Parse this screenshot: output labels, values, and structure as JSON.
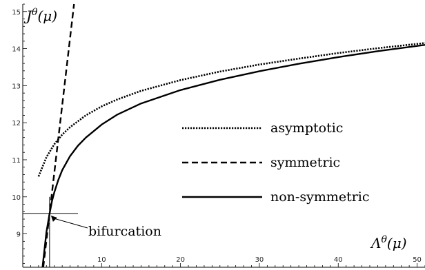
{
  "chart_data": {
    "type": "line",
    "xlabel": "Λ^θ(μ)",
    "ylabel": "J^θ(μ)",
    "xlim": [
      0,
      51
    ],
    "ylim": [
      8.1,
      15.2
    ],
    "x_ticks": [
      10,
      20,
      30,
      40,
      50
    ],
    "y_ticks": [
      9,
      10,
      11,
      12,
      13,
      14,
      15
    ],
    "grid": false,
    "legend_position": "center-right",
    "series": [
      {
        "name": "asymptotic",
        "style": "dotted",
        "color": "#000000",
        "x": [
          2,
          3,
          4,
          5,
          6,
          8,
          10,
          12,
          15,
          20,
          25,
          30,
          35,
          40,
          45,
          51
        ],
        "y": [
          10.55,
          11.07,
          11.42,
          11.68,
          11.88,
          12.2,
          12.44,
          12.63,
          12.86,
          13.15,
          13.38,
          13.57,
          13.73,
          13.88,
          14.01,
          14.15
        ]
      },
      {
        "name": "symmetric",
        "style": "dashed",
        "color": "#000000",
        "x": [
          2.6,
          6.5
        ],
        "y": [
          8.1,
          15.2
        ]
      },
      {
        "name": "non-symmetric",
        "style": "solid",
        "color": "#000000",
        "x": [
          2.5,
          3.0,
          3.4,
          3.7,
          4.0,
          4.5,
          5,
          6,
          7,
          8,
          10,
          12,
          15,
          20,
          25,
          30,
          35,
          40,
          45,
          51
        ],
        "y": [
          8.1,
          9.05,
          9.55,
          9.88,
          10.12,
          10.45,
          10.72,
          11.1,
          11.38,
          11.6,
          11.95,
          12.22,
          12.52,
          12.88,
          13.16,
          13.39,
          13.59,
          13.77,
          13.93,
          14.1
        ]
      }
    ],
    "annotations": [
      {
        "text": "bifurcation",
        "point": [
          3.4,
          9.55
        ]
      }
    ],
    "reference_lines": {
      "vertical_x": 3.4,
      "vertical_y_range": [
        8.1,
        10.0
      ],
      "horizontal_y": 9.55,
      "horizontal_x_range": [
        0,
        7
      ]
    }
  }
}
